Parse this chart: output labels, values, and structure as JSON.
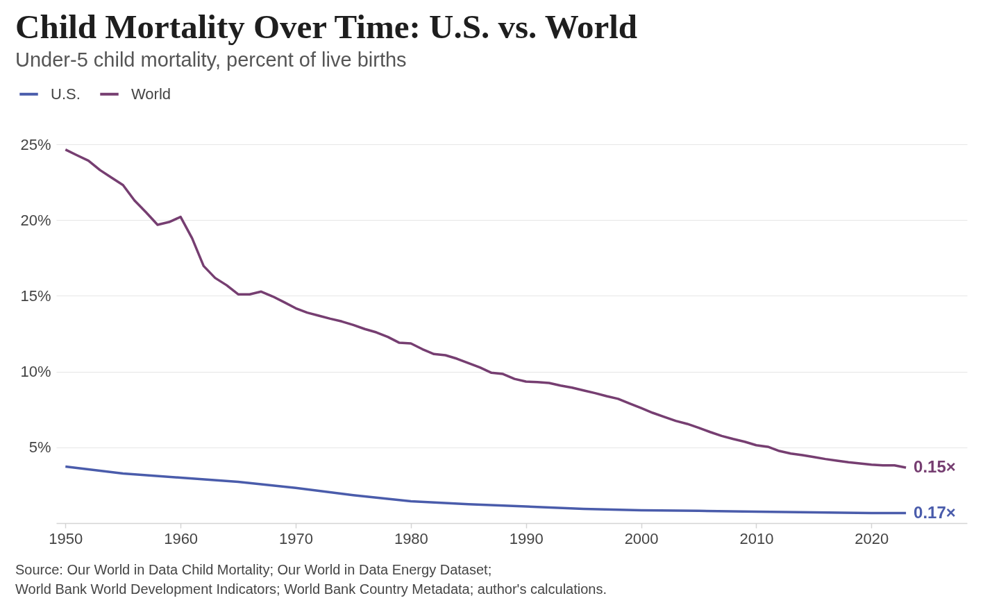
{
  "chart_data": {
    "type": "line",
    "title": "Child Mortality Over Time: U.S. vs. World",
    "subtitle": "Under-5 child mortality, percent of live births",
    "series": [
      {
        "name": "U.S.",
        "color": "#4a5cab",
        "x": [
          1950,
          1955,
          1960,
          1965,
          1970,
          1975,
          1980,
          1985,
          1990,
          1995,
          2000,
          2005,
          2010,
          2015,
          2020,
          2023
        ],
        "values": [
          3.73,
          3.27,
          3.0,
          2.72,
          2.32,
          1.84,
          1.44,
          1.25,
          1.1,
          0.94,
          0.85,
          0.81,
          0.75,
          0.71,
          0.66,
          0.66
        ]
      },
      {
        "name": "World",
        "color": "#763e71",
        "x": [
          1950,
          1951,
          1952,
          1953,
          1954,
          1955,
          1956,
          1957,
          1958,
          1959,
          1960,
          1961,
          1962,
          1963,
          1964,
          1965,
          1966,
          1967,
          1968,
          1969,
          1970,
          1971,
          1972,
          1973,
          1974,
          1975,
          1976,
          1977,
          1978,
          1979,
          1980,
          1981,
          1982,
          1983,
          1984,
          1985,
          1986,
          1987,
          1988,
          1989,
          1990,
          1991,
          1992,
          1993,
          1994,
          1995,
          1996,
          1997,
          1998,
          1999,
          2000,
          2001,
          2002,
          2003,
          2004,
          2005,
          2006,
          2007,
          2008,
          2009,
          2010,
          2011,
          2012,
          2013,
          2014,
          2015,
          2016,
          2017,
          2018,
          2019,
          2020,
          2021,
          2022,
          2023
        ],
        "values": [
          24.65,
          24.28,
          23.92,
          23.3,
          22.8,
          22.31,
          21.29,
          20.51,
          19.69,
          19.87,
          20.21,
          18.8,
          16.97,
          16.18,
          15.7,
          15.1,
          15.1,
          15.28,
          14.96,
          14.58,
          14.18,
          13.89,
          13.69,
          13.49,
          13.31,
          13.08,
          12.81,
          12.59,
          12.29,
          11.9,
          11.86,
          11.48,
          11.16,
          11.08,
          10.85,
          10.56,
          10.27,
          9.92,
          9.84,
          9.52,
          9.34,
          9.31,
          9.25,
          9.08,
          8.94,
          8.76,
          8.58,
          8.38,
          8.2,
          7.89,
          7.59,
          7.28,
          7.01,
          6.75,
          6.55,
          6.29,
          6.01,
          5.75,
          5.55,
          5.37,
          5.14,
          5.04,
          4.76,
          4.59,
          4.49,
          4.36,
          4.23,
          4.12,
          4.02,
          3.94,
          3.86,
          3.81,
          3.81,
          3.66
        ]
      }
    ],
    "xlim": [
      1949.2,
      2028.3
    ],
    "xticks": [
      1950,
      1960,
      1970,
      1980,
      1990,
      2000,
      2010,
      2020
    ],
    "ylim": [
      0,
      25
    ],
    "yticks": [
      {
        "value": 5,
        "label": "5%"
      },
      {
        "value": 10,
        "label": "10%"
      },
      {
        "value": 15,
        "label": "15%"
      },
      {
        "value": 20,
        "label": "20%"
      },
      {
        "value": 25,
        "label": "25%"
      }
    ],
    "grid": "y",
    "legend": "top left",
    "line_style": "solid",
    "annotations": [
      {
        "text": "0.15×",
        "x": 2023,
        "y": 3.66
      },
      {
        "text": "0.17×",
        "x": 2023,
        "y": 0.66
      },
      "Source: Our World in Data Child Mortality; Our World in Data Energy Dataset;",
      "World Bank World Development Indicators; World Bank Country Metadata; author's calculations."
    ]
  }
}
